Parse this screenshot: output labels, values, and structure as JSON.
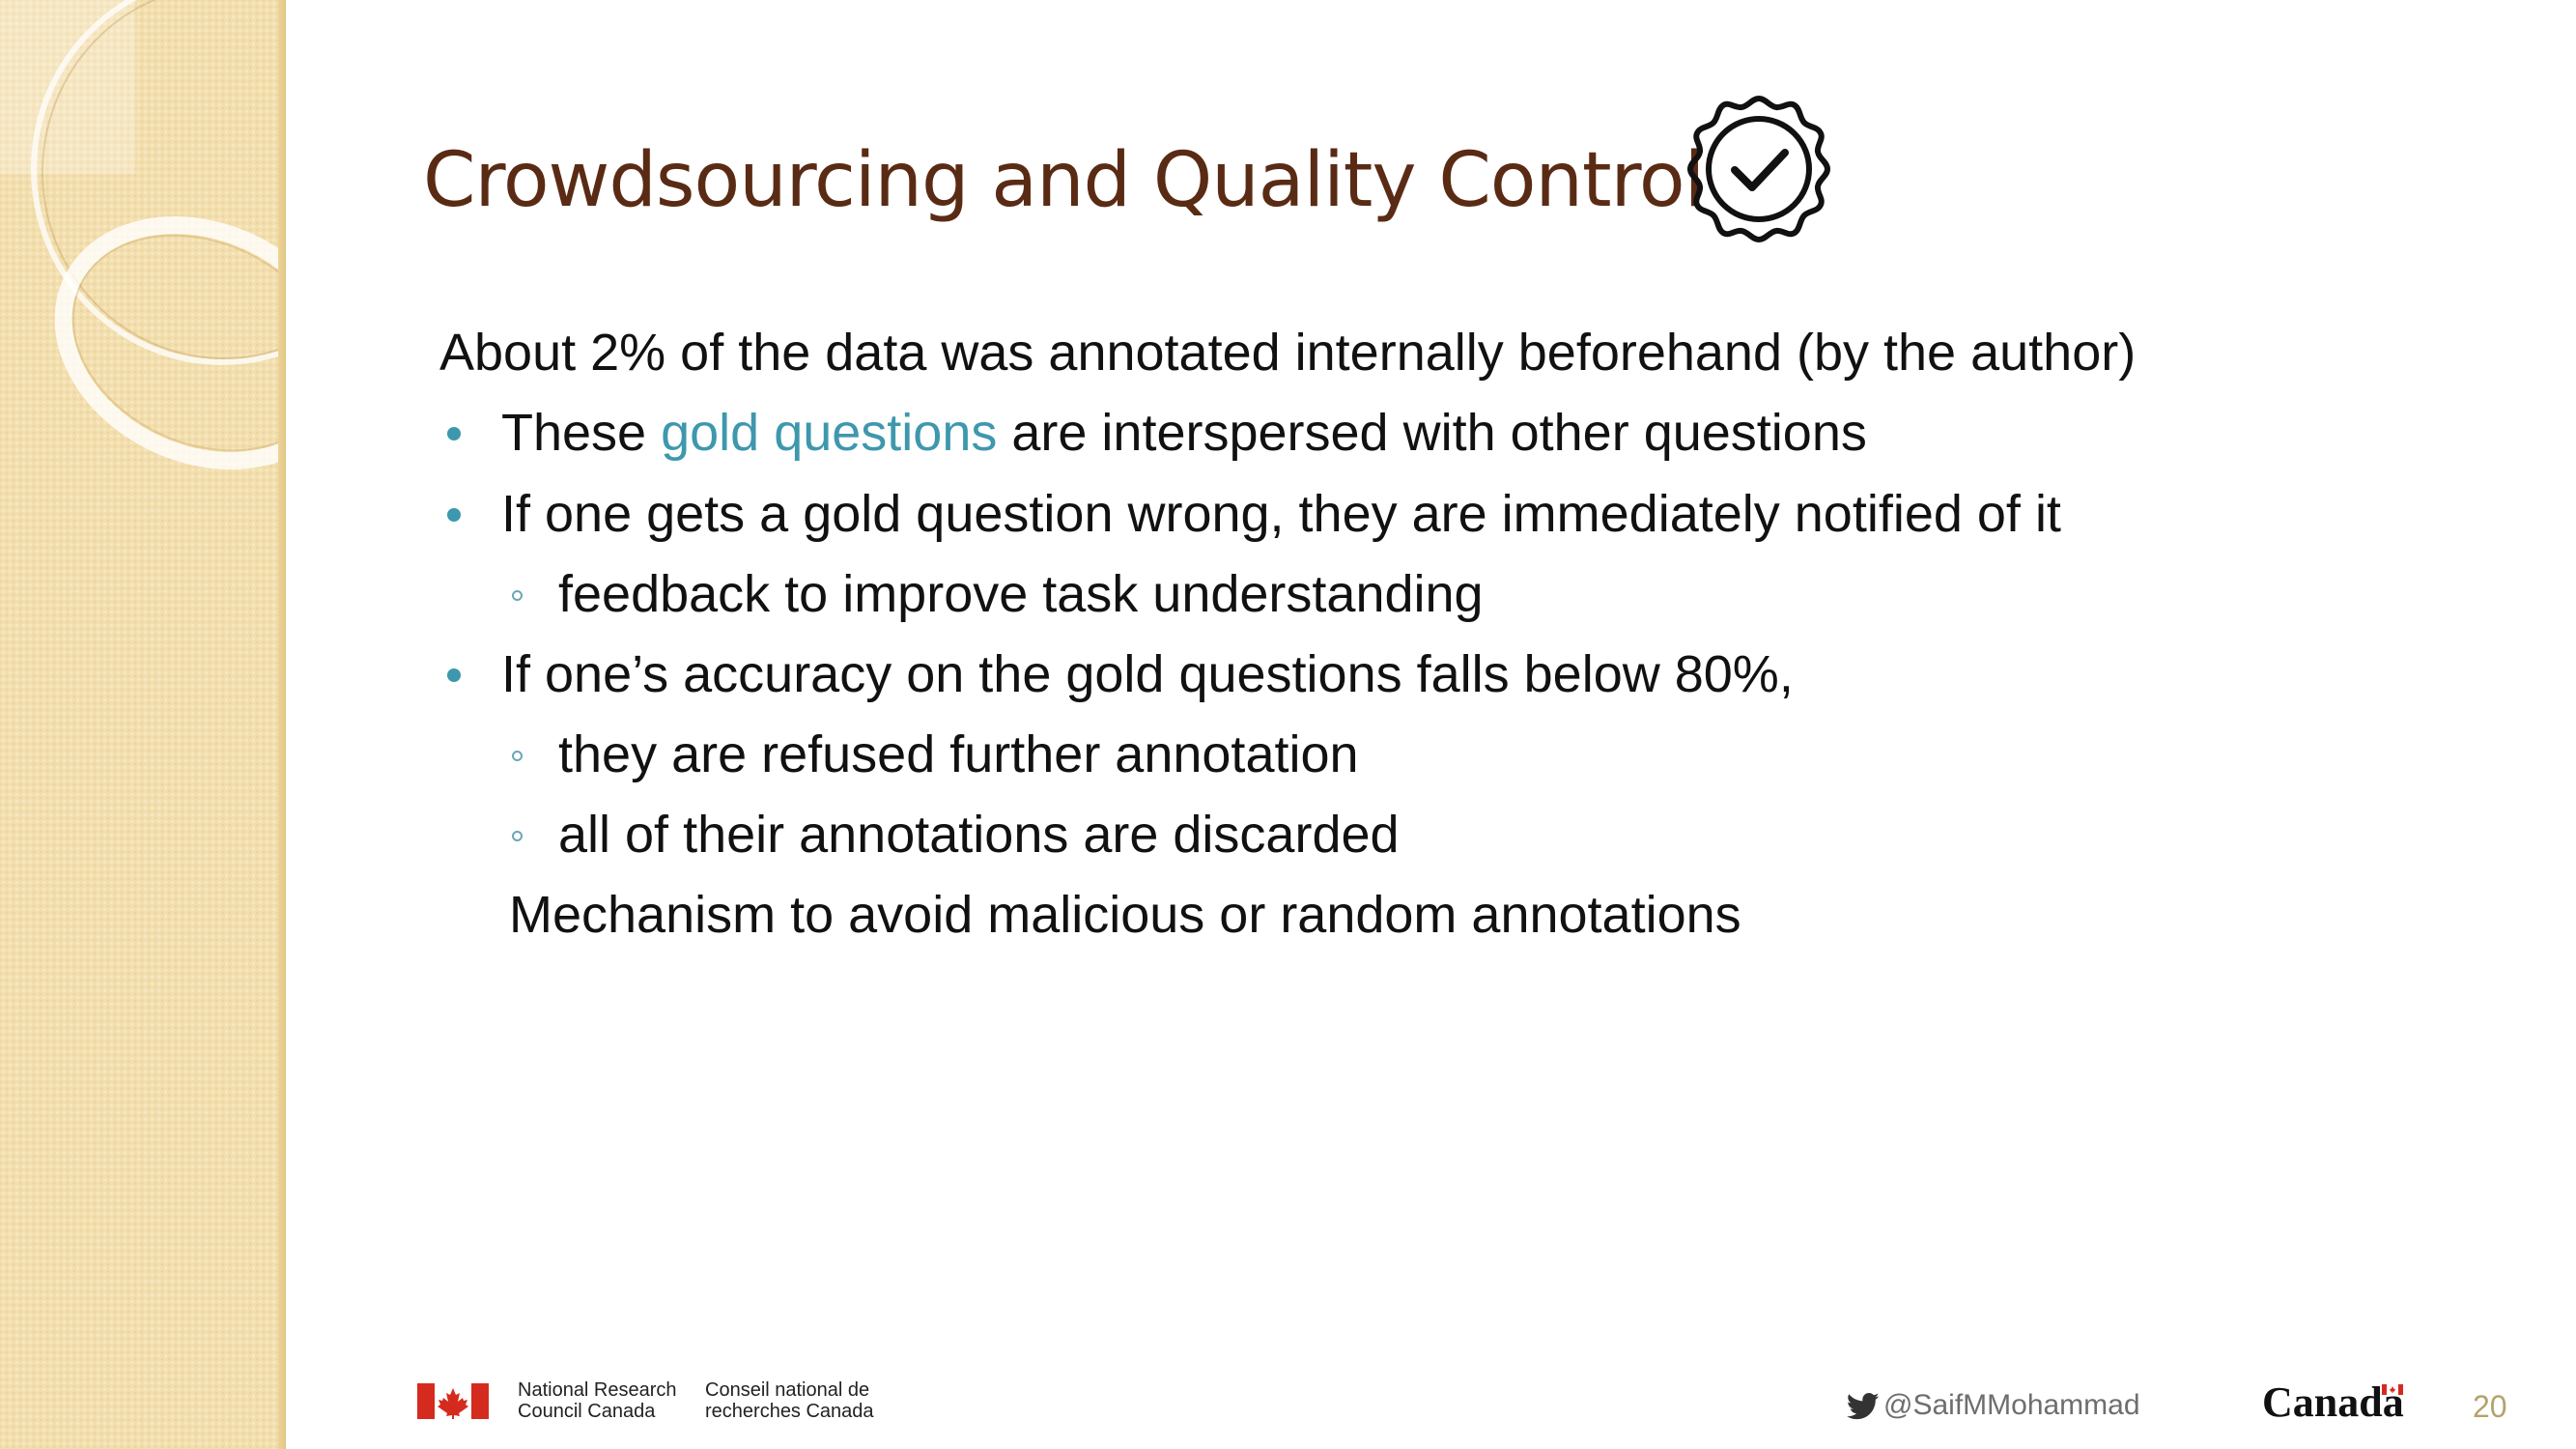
{
  "title": "Crowdsourcing and Quality Control",
  "badge_icon": "verified-check-badge-icon",
  "content": {
    "intro": "About 2% of the data was annotated internally beforehand (by the author)",
    "bullet1": {
      "before": "These ",
      "highlight": "gold questions",
      "after": " are interspersed with other questions"
    },
    "bullet2": "If one gets a gold question wrong, they are immediately notified of it",
    "bullet2_sub1": "feedback to improve task understanding",
    "bullet3": "If one’s accuracy on the gold questions falls below 80%,",
    "bullet3_sub1": "they are refused further annotation",
    "bullet3_sub2": "all of their annotations are discarded",
    "conclusion": "Mechanism to avoid malicious or random annotations"
  },
  "footer": {
    "nrc_en_line1": "National Research",
    "nrc_en_line2": "Council Canada",
    "nrc_fr_line1": "Conseil national de",
    "nrc_fr_line2": "recherches Canada",
    "twitter_handle": "@SaifMMohammad",
    "wordmark": "Canada",
    "page_number": "20"
  },
  "colors": {
    "title": "#5a2b14",
    "accent": "#3e98ad",
    "sidebar": "#f3dfae",
    "page_number": "#b3a36c",
    "flag_red": "#d52b1e"
  }
}
